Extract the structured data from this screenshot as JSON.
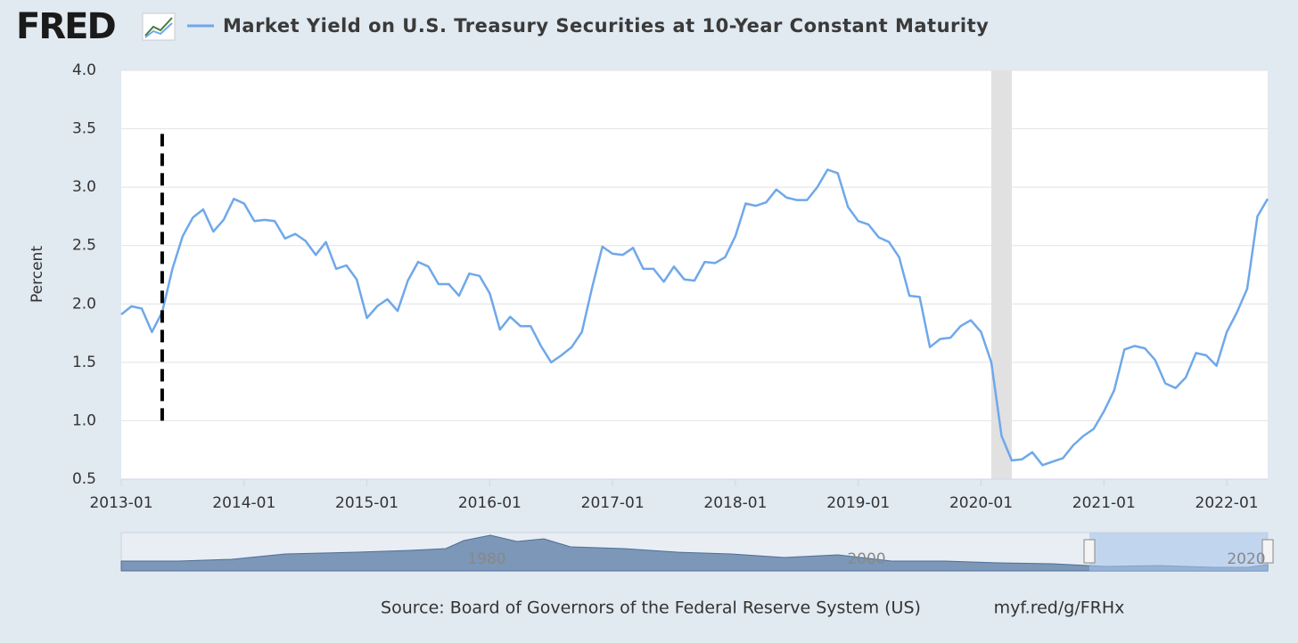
{
  "logo": "FRED",
  "chart_data": {
    "type": "line",
    "title": "Market Yield on U.S. Treasury Securities at 10-Year Constant Maturity",
    "y_label": "Percent",
    "source": "Source: Board of Governors of the Federal Reserve System (US)",
    "link": "myf.red/g/FRHx",
    "xlim": [
      "2013-01",
      "2022-05"
    ],
    "xticks": [
      "2013-01",
      "2014-01",
      "2015-01",
      "2016-01",
      "2017-01",
      "2018-01",
      "2019-01",
      "2020-01",
      "2021-01",
      "2022-01"
    ],
    "ylim": [
      0.5,
      4.0
    ],
    "yticks": [
      0.5,
      {
        "value": 1.0,
        "label": "1.0"
      },
      1.5,
      {
        "value": 2.0,
        "label": "2.0"
      },
      2.5,
      {
        "value": 3.0,
        "label": "3.0"
      },
      3.5,
      {
        "value": 4.0,
        "label": "4.0"
      }
    ],
    "grid": true,
    "recessions": [
      [
        "2020-02",
        "2020-04"
      ]
    ],
    "markers": [
      {
        "x": "2013-05",
        "ymin": 1.0,
        "ymax": 3.5
      }
    ],
    "navigator_labels": [
      "1980",
      "2000",
      "2020"
    ],
    "x": [
      "2013-01",
      "2013-02",
      "2013-03",
      "2013-04",
      "2013-05",
      "2013-06",
      "2013-07",
      "2013-08",
      "2013-09",
      "2013-10",
      "2013-11",
      "2013-12",
      "2014-01",
      "2014-02",
      "2014-03",
      "2014-04",
      "2014-05",
      "2014-06",
      "2014-07",
      "2014-08",
      "2014-09",
      "2014-10",
      "2014-11",
      "2014-12",
      "2015-01",
      "2015-02",
      "2015-03",
      "2015-04",
      "2015-05",
      "2015-06",
      "2015-07",
      "2015-08",
      "2015-09",
      "2015-10",
      "2015-11",
      "2015-12",
      "2016-01",
      "2016-02",
      "2016-03",
      "2016-04",
      "2016-05",
      "2016-06",
      "2016-07",
      "2016-08",
      "2016-09",
      "2016-10",
      "2016-11",
      "2016-12",
      "2017-01",
      "2017-02",
      "2017-03",
      "2017-04",
      "2017-05",
      "2017-06",
      "2017-07",
      "2017-08",
      "2017-09",
      "2017-10",
      "2017-11",
      "2017-12",
      "2018-01",
      "2018-02",
      "2018-03",
      "2018-04",
      "2018-05",
      "2018-06",
      "2018-07",
      "2018-08",
      "2018-09",
      "2018-10",
      "2018-11",
      "2018-12",
      "2019-01",
      "2019-02",
      "2019-03",
      "2019-04",
      "2019-05",
      "2019-06",
      "2019-07",
      "2019-08",
      "2019-09",
      "2019-10",
      "2019-11",
      "2019-12",
      "2020-01",
      "2020-02",
      "2020-03",
      "2020-04",
      "2020-05",
      "2020-06",
      "2020-07",
      "2020-08",
      "2020-09",
      "2020-10",
      "2020-11",
      "2020-12",
      "2021-01",
      "2021-02",
      "2021-03",
      "2021-04",
      "2021-05",
      "2021-06",
      "2021-07",
      "2021-08",
      "2021-09",
      "2021-10",
      "2021-11",
      "2021-12",
      "2022-01",
      "2022-02",
      "2022-03",
      "2022-04",
      "2022-05"
    ],
    "series": [
      {
        "name": "Market Yield on U.S. Treasury Securities at 10-Year Constant Maturity",
        "color": "#6fa8ea",
        "values": [
          1.91,
          1.98,
          1.96,
          1.76,
          1.93,
          2.3,
          2.58,
          2.74,
          2.81,
          2.62,
          2.72,
          2.9,
          2.86,
          2.71,
          2.72,
          2.71,
          2.56,
          2.6,
          2.54,
          2.42,
          2.53,
          2.3,
          2.33,
          2.21,
          1.88,
          1.98,
          2.04,
          1.94,
          2.2,
          2.36,
          2.32,
          2.17,
          2.17,
          2.07,
          2.26,
          2.24,
          2.09,
          1.78,
          1.89,
          1.81,
          1.81,
          1.64,
          1.5,
          1.56,
          1.63,
          1.76,
          2.14,
          2.49,
          2.43,
          2.42,
          2.48,
          2.3,
          2.3,
          2.19,
          2.32,
          2.21,
          2.2,
          2.36,
          2.35,
          2.4,
          2.58,
          2.86,
          2.84,
          2.87,
          2.98,
          2.91,
          2.89,
          2.89,
          3.0,
          3.15,
          3.12,
          2.83,
          2.71,
          2.68,
          2.57,
          2.53,
          2.4,
          2.07,
          2.06,
          1.63,
          1.7,
          1.71,
          1.81,
          1.86,
          1.76,
          1.5,
          0.87,
          0.66,
          0.67,
          0.73,
          0.62,
          0.65,
          0.68,
          0.79,
          0.87,
          0.93,
          1.08,
          1.26,
          1.61,
          1.64,
          1.62,
          1.52,
          1.32,
          1.28,
          1.37,
          1.58,
          1.56,
          1.47,
          1.76,
          1.93,
          2.13,
          2.75,
          2.9
        ]
      }
    ]
  }
}
